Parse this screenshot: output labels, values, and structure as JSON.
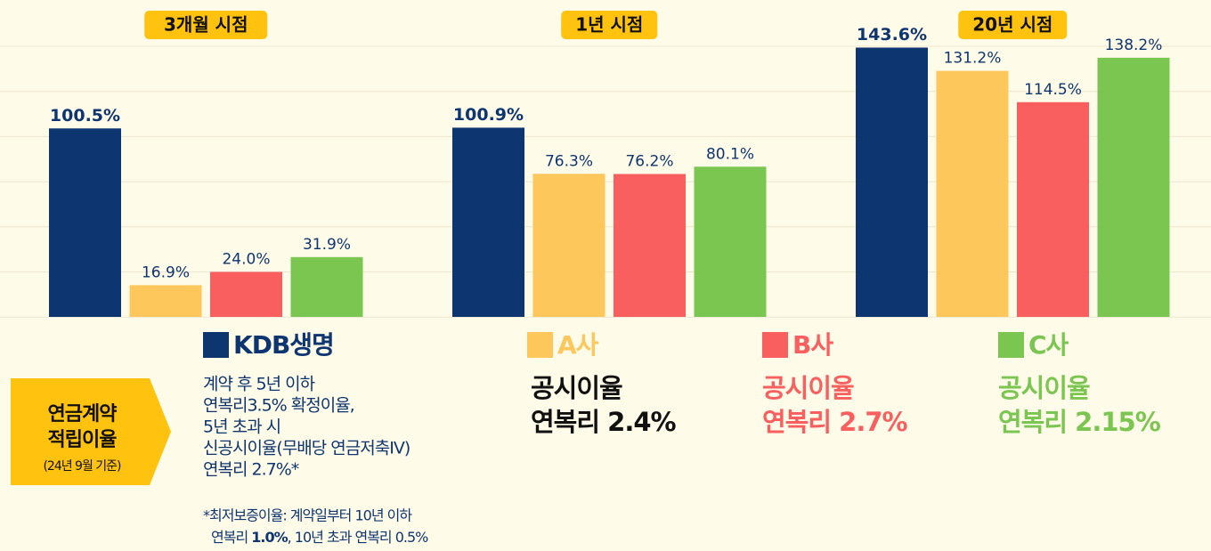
{
  "chart_data": {
    "type": "bar",
    "categories": [
      "3개월 시점",
      "1년 시점",
      "20년 시점"
    ],
    "series": [
      {
        "name": "KDB생명",
        "color": "#0d3570",
        "values": [
          100.5,
          100.9,
          143.6
        ],
        "value_labels": [
          "100.5%",
          "100.9%",
          "143.6%"
        ]
      },
      {
        "name": "A사",
        "color": "#fdc75c",
        "values": [
          16.9,
          76.3,
          131.2
        ],
        "value_labels": [
          "16.9%",
          "76.3%",
          "131.2%"
        ]
      },
      {
        "name": "B사",
        "color": "#f95f5f",
        "values": [
          24.0,
          76.2,
          114.5
        ],
        "value_labels": [
          "24.0%",
          "76.2%",
          "114.5%"
        ]
      },
      {
        "name": "C사",
        "color": "#7ac651",
        "values": [
          31.9,
          80.1,
          138.2
        ],
        "value_labels": [
          "31.9%",
          "80.1%",
          "138.2%"
        ]
      }
    ],
    "ylim": [
      0,
      150
    ],
    "descriptions": [
      {
        "lines": [
          "계약 후 5년 이하",
          "연복리3.5% 확정이율,",
          "5년 초과 시",
          "신공시이율(무배당 연금저축IV)",
          "연복리 2.7%*"
        ],
        "note": [
          "*최저보증이율: 계약일부터 10년 이하",
          "연복리 ",
          "1.0%",
          ", 10년 초과 연복리 0.5%"
        ]
      },
      {
        "lines": [
          "공시이율",
          "연복리 2.4%"
        ]
      },
      {
        "lines": [
          "공시이율",
          "연복리 2.7%"
        ]
      },
      {
        "lines": [
          "공시이율",
          "연복리 2.15%"
        ]
      }
    ],
    "badge": {
      "title": [
        "연금계약",
        "적립이율"
      ],
      "subtitle": "(24년 9월 기준)"
    }
  }
}
